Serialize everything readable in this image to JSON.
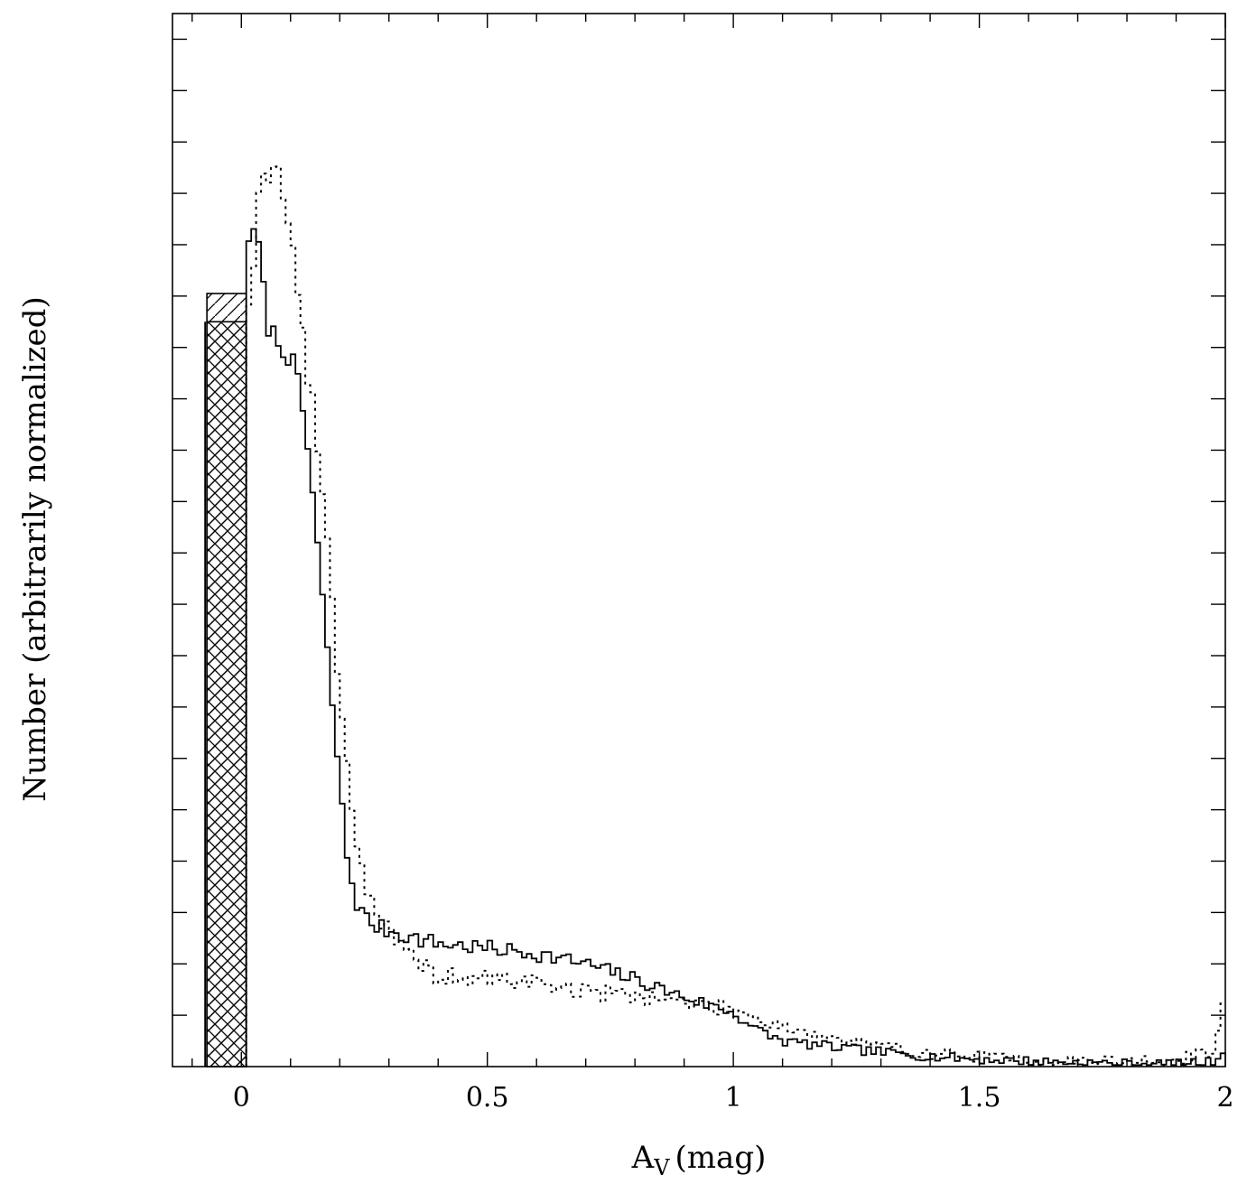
{
  "chart_data": {
    "type": "histogram",
    "xlabel": "A",
    "xlabel_sub": "V",
    "xlabel_unit": "(mag)",
    "ylabel": "Number (arbitrarily normalized)",
    "xlim": [
      -0.14,
      2.0
    ],
    "ylim": [
      0,
      20.5
    ],
    "x_ticks": [
      {
        "value": 0,
        "label": "0"
      },
      {
        "value": 0.5,
        "label": "0.5"
      },
      {
        "value": 1,
        "label": "1"
      },
      {
        "value": 1.5,
        "label": "1.5"
      },
      {
        "value": 2,
        "label": "2"
      }
    ],
    "x_minor_step": 0.1,
    "y_tick_step": 1,
    "y_tick_count": 20,
    "y_tick_labels": "none",
    "grid": false,
    "legend": "none",
    "bin_width": 0.01,
    "special_bins": [
      {
        "name": "hatched-bin",
        "x0": -0.07,
        "x1": 0.01,
        "value": 15.05,
        "pattern": "hatch"
      },
      {
        "name": "crosshatched-bin",
        "x0": -0.07,
        "x1": 0.01,
        "value": 14.5,
        "pattern": "crosshatch"
      }
    ],
    "series": [
      {
        "style": "solid",
        "anchors": [
          [
            0.015,
            16.2
          ],
          [
            0.035,
            16.0
          ],
          [
            0.05,
            14.6
          ],
          [
            0.06,
            14.3
          ],
          [
            0.075,
            14.1
          ],
          [
            0.09,
            14.0
          ],
          [
            0.11,
            13.5
          ],
          [
            0.13,
            12.5
          ],
          [
            0.15,
            10.7
          ],
          [
            0.17,
            8.5
          ],
          [
            0.19,
            6.6
          ],
          [
            0.21,
            4.4
          ],
          [
            0.23,
            3.3
          ],
          [
            0.25,
            2.9
          ],
          [
            0.28,
            2.7
          ],
          [
            0.32,
            2.6
          ],
          [
            0.35,
            2.5
          ],
          [
            0.4,
            2.4
          ],
          [
            0.5,
            2.3
          ],
          [
            0.6,
            2.2
          ],
          [
            0.7,
            2.0
          ],
          [
            0.8,
            1.7
          ],
          [
            0.9,
            1.35
          ],
          [
            1.0,
            1.05
          ],
          [
            1.05,
            0.7
          ],
          [
            1.1,
            0.5
          ],
          [
            1.2,
            0.38
          ],
          [
            1.3,
            0.28
          ],
          [
            1.4,
            0.2
          ],
          [
            1.5,
            0.14
          ],
          [
            1.6,
            0.11
          ],
          [
            1.7,
            0.08
          ],
          [
            1.8,
            0.06
          ],
          [
            1.9,
            0.05
          ],
          [
            1.98,
            0.1
          ],
          [
            1.995,
            0.35
          ]
        ],
        "amplitude": 0.25,
        "seed": 7
      },
      {
        "style": "dotted",
        "anchors": [
          [
            0.015,
            15.0
          ],
          [
            0.035,
            16.8
          ],
          [
            0.05,
            17.8
          ],
          [
            0.06,
            17.2
          ],
          [
            0.075,
            17.5
          ],
          [
            0.09,
            17.0
          ],
          [
            0.11,
            15.5
          ],
          [
            0.13,
            13.8
          ],
          [
            0.15,
            12.5
          ],
          [
            0.17,
            10.8
          ],
          [
            0.19,
            8.5
          ],
          [
            0.21,
            6.2
          ],
          [
            0.23,
            4.8
          ],
          [
            0.25,
            3.6
          ],
          [
            0.28,
            2.9
          ],
          [
            0.32,
            2.3
          ],
          [
            0.35,
            2.1
          ],
          [
            0.4,
            1.75
          ],
          [
            0.5,
            1.7
          ],
          [
            0.6,
            1.65
          ],
          [
            0.7,
            1.45
          ],
          [
            0.8,
            1.4
          ],
          [
            0.9,
            1.25
          ],
          [
            1.0,
            1.1
          ],
          [
            1.05,
            0.95
          ],
          [
            1.1,
            0.8
          ],
          [
            1.2,
            0.55
          ],
          [
            1.3,
            0.38
          ],
          [
            1.4,
            0.27
          ],
          [
            1.5,
            0.18
          ],
          [
            1.6,
            0.13
          ],
          [
            1.7,
            0.1
          ],
          [
            1.8,
            0.1
          ],
          [
            1.9,
            0.1
          ],
          [
            1.98,
            0.35
          ],
          [
            1.995,
            1.1
          ]
        ],
        "amplitude": 0.32,
        "seed": 19
      }
    ]
  }
}
